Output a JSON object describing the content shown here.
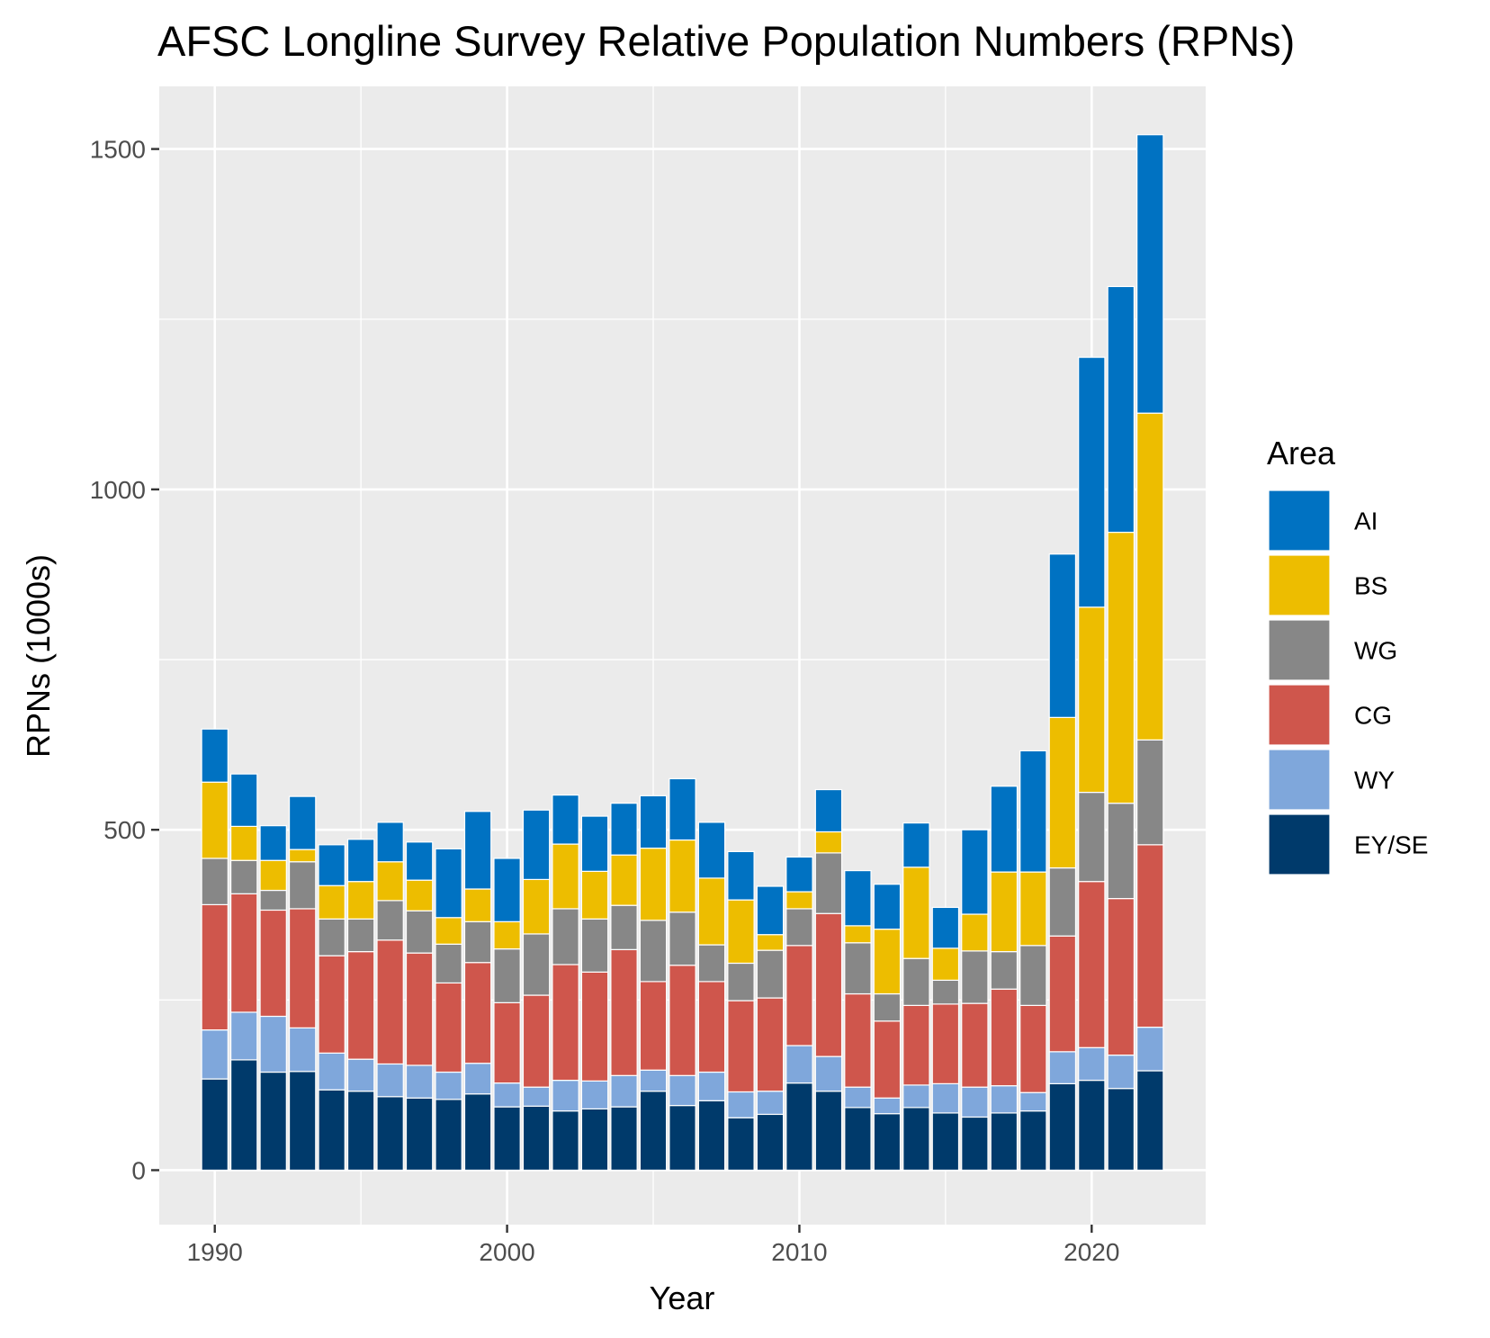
{
  "chart_data": {
    "type": "bar",
    "stacked": true,
    "title": "AFSC Longline Survey Relative Population Numbers (RPNs)",
    "xlabel": "Year",
    "ylabel": "RPNs (1000s)",
    "xlim": [
      1988.1,
      2023.9
    ],
    "ylim": [
      -80,
      1592
    ],
    "x_ticks": [
      1990,
      2000,
      2010,
      2020
    ],
    "y_ticks": [
      0,
      500,
      1000,
      1500
    ],
    "grid": true,
    "legend": {
      "title": "Area",
      "position": "right"
    },
    "x": [
      1990,
      1991,
      1992,
      1993,
      1994,
      1995,
      1996,
      1997,
      1998,
      1999,
      2000,
      2001,
      2002,
      2003,
      2004,
      2005,
      2006,
      2007,
      2008,
      2009,
      2010,
      2011,
      2012,
      2013,
      2014,
      2015,
      2016,
      2017,
      2018,
      2019,
      2020,
      2021,
      2022
    ],
    "series": [
      {
        "name": "EY/SE",
        "color": "#003a6b",
        "values": [
          134,
          162,
          144,
          145,
          118,
          116,
          108,
          106,
          104,
          112,
          93,
          94,
          87,
          90,
          93,
          116,
          95,
          102,
          77,
          82,
          128,
          116,
          92,
          83,
          92,
          84,
          78,
          84,
          87,
          127,
          132,
          120,
          146
        ]
      },
      {
        "name": "WY",
        "color": "#7fa7db",
        "values": [
          72,
          70,
          82,
          64,
          54,
          47,
          48,
          48,
          40,
          45,
          35,
          28,
          45,
          41,
          46,
          31,
          44,
          42,
          38,
          34,
          55,
          51,
          30,
          23,
          33,
          43,
          44,
          40,
          27,
          47,
          48,
          49,
          64
        ]
      },
      {
        "name": "CG",
        "color": "#cf564c",
        "values": [
          184,
          174,
          156,
          175,
          143,
          158,
          182,
          165,
          131,
          148,
          118,
          135,
          170,
          160,
          185,
          130,
          162,
          133,
          134,
          137,
          147,
          210,
          137,
          113,
          117,
          117,
          123,
          142,
          128,
          170,
          244,
          230,
          268
        ]
      },
      {
        "name": "WG",
        "color": "#878787",
        "values": [
          68,
          49,
          29,
          69,
          54,
          48,
          58,
          62,
          57,
          60,
          79,
          90,
          82,
          78,
          65,
          90,
          78,
          54,
          55,
          70,
          54,
          89,
          75,
          40,
          69,
          35,
          77,
          55,
          88,
          100,
          131,
          140,
          154
        ]
      },
      {
        "name": "BS",
        "color": "#edbd00",
        "values": [
          112,
          50,
          44,
          18,
          49,
          55,
          57,
          45,
          39,
          48,
          40,
          80,
          95,
          70,
          74,
          106,
          106,
          98,
          93,
          23,
          25,
          31,
          25,
          95,
          134,
          47,
          54,
          117,
          108,
          221,
          272,
          398,
          480
        ]
      },
      {
        "name": "AI",
        "color": "#0072c2",
        "values": [
          78,
          77,
          51,
          78,
          60,
          62,
          58,
          56,
          101,
          114,
          93,
          102,
          72,
          81,
          76,
          77,
          90,
          82,
          71,
          71,
          51,
          62,
          81,
          66,
          65,
          60,
          124,
          126,
          178,
          240,
          367,
          361,
          409
        ]
      }
    ]
  }
}
